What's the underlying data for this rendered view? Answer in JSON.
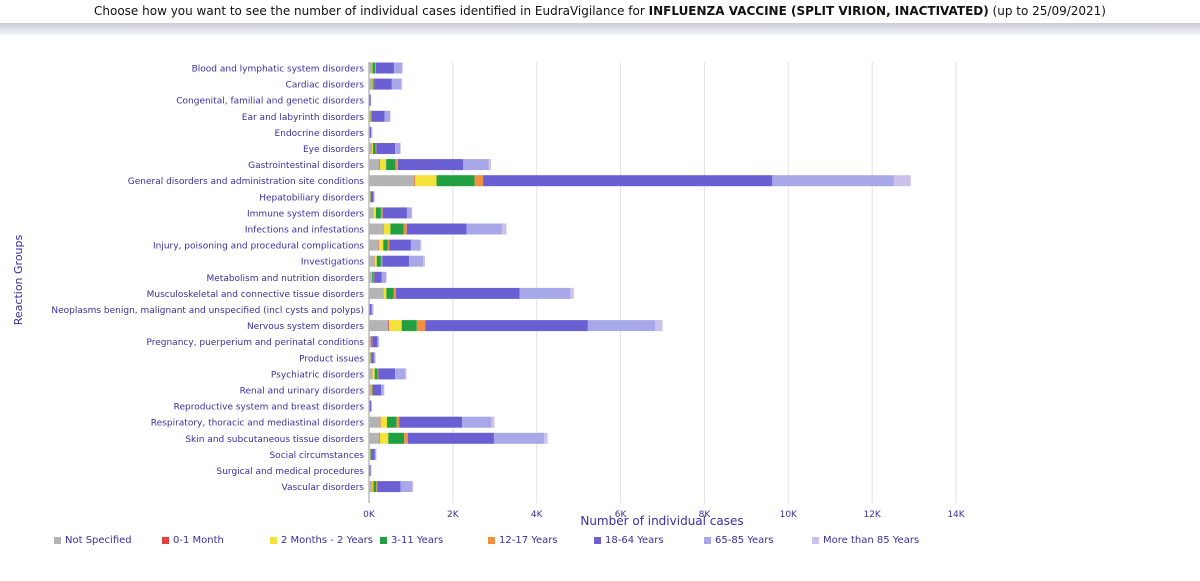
{
  "header": {
    "title_prefix": "Choose how you want to see the number of individual cases identified in EudraVigilance for",
    "title_product": "INFLUENZA VACCINE (SPLIT VIRION, INACTIVATED)",
    "title_suffix": "(up to 25/09/2021)"
  },
  "chart_data": {
    "type": "bar",
    "orientation": "horizontal",
    "stacked": true,
    "xlabel": "Number of individual cases",
    "ylabel": "Reaction Groups",
    "xlim": [
      0,
      14000
    ],
    "xticks": [
      0,
      2000,
      4000,
      6000,
      8000,
      10000,
      12000,
      14000
    ],
    "xtick_labels": [
      "0K",
      "2K",
      "4K",
      "6K",
      "8K",
      "10K",
      "12K",
      "14K"
    ],
    "grid": true,
    "legend_position": "bottom",
    "categories": [
      "Blood and lymphatic system disorders",
      "Cardiac disorders",
      "Congenital, familial and genetic disorders",
      "Ear and labyrinth disorders",
      "Endocrine disorders",
      "Eye disorders",
      "Gastrointestinal disorders",
      "General disorders and administration site conditions",
      "Hepatobiliary disorders",
      "Immune system disorders",
      "Infections and infestations",
      "Injury, poisoning and procedural complications",
      "Investigations",
      "Metabolism and nutrition disorders",
      "Musculoskeletal and connective tissue disorders",
      "Neoplasms benign, malignant and unspecified (incl cysts and polyps)",
      "Nervous system disorders",
      "Pregnancy, puerperium and perinatal conditions",
      "Product issues",
      "Psychiatric disorders",
      "Renal and urinary disorders",
      "Reproductive system and breast disorders",
      "Respiratory, thoracic and mediastinal disorders",
      "Skin and subcutaneous tissue disorders",
      "Social circumstances",
      "Surgical and medical procedures",
      "Vascular disorders"
    ],
    "series": [
      {
        "name": "Not Specified",
        "color": "#b4b4b4",
        "values": [
          60,
          60,
          5,
          30,
          10,
          60,
          250,
          1070,
          20,
          100,
          340,
          230,
          130,
          50,
          340,
          10,
          460,
          40,
          30,
          80,
          40,
          10,
          270,
          250,
          20,
          5,
          70
        ]
      },
      {
        "name": "0-1 Month",
        "color": "#e04040",
        "values": [
          5,
          5,
          2,
          2,
          0,
          5,
          10,
          20,
          0,
          5,
          10,
          10,
          5,
          5,
          5,
          0,
          20,
          5,
          2,
          5,
          2,
          0,
          10,
          10,
          0,
          0,
          5
        ]
      },
      {
        "name": "2 Months - 2 Years",
        "color": "#f4e23a",
        "values": [
          20,
          20,
          3,
          10,
          5,
          30,
          150,
          520,
          10,
          60,
          160,
          100,
          50,
          20,
          70,
          5,
          300,
          10,
          10,
          50,
          20,
          5,
          150,
          200,
          10,
          2,
          30
        ]
      },
      {
        "name": "3-11 Years",
        "color": "#20a040",
        "values": [
          60,
          30,
          5,
          20,
          5,
          60,
          220,
          910,
          10,
          120,
          320,
          110,
          100,
          40,
          170,
          5,
          360,
          20,
          10,
          70,
          20,
          5,
          230,
          380,
          15,
          5,
          70
        ]
      },
      {
        "name": "12-17 Years",
        "color": "#f09040",
        "values": [
          20,
          10,
          2,
          10,
          2,
          20,
          60,
          200,
          5,
          40,
          70,
          30,
          30,
          10,
          60,
          2,
          200,
          5,
          5,
          20,
          10,
          2,
          60,
          90,
          5,
          2,
          20
        ]
      },
      {
        "name": "18-64 Years",
        "color": "#6b5fd4",
        "values": [
          430,
          420,
          20,
          300,
          30,
          450,
          1560,
          6900,
          60,
          580,
          1430,
          520,
          640,
          180,
          2950,
          40,
          3880,
          120,
          60,
          400,
          200,
          30,
          1500,
          2050,
          90,
          20,
          560
        ]
      },
      {
        "name": "65-85 Years",
        "color": "#a8a8e8",
        "values": [
          190,
          220,
          8,
          130,
          15,
          120,
          600,
          2900,
          20,
          110,
          850,
          220,
          340,
          100,
          1200,
          30,
          1600,
          30,
          30,
          240,
          60,
          10,
          700,
          1200,
          25,
          10,
          270
        ]
      },
      {
        "name": "More than 85 Years",
        "color": "#cac2ec",
        "values": [
          20,
          30,
          0,
          15,
          2,
          10,
          60,
          400,
          5,
          15,
          100,
          30,
          40,
          15,
          90,
          5,
          180,
          5,
          5,
          30,
          10,
          0,
          70,
          80,
          5,
          2,
          30
        ]
      }
    ]
  }
}
